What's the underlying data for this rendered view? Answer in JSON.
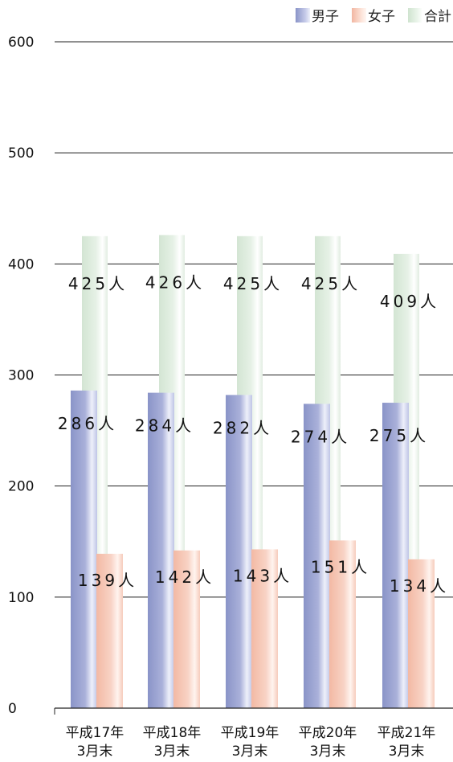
{
  "chart_data": {
    "type": "bar",
    "categories": [
      [
        "平成17年",
        "3月末"
      ],
      [
        "平成18年",
        "3月末"
      ],
      [
        "平成19年",
        "3月末"
      ],
      [
        "平成20年",
        "3月末"
      ],
      [
        "平成21年",
        "3月末"
      ]
    ],
    "series": [
      {
        "name": "男子",
        "values": [
          286,
          284,
          282,
          274,
          275
        ],
        "labels": [
          "286人",
          "284人",
          "282人",
          "274人",
          "275人"
        ]
      },
      {
        "name": "女子",
        "values": [
          139,
          142,
          143,
          151,
          134
        ],
        "labels": [
          "139人",
          "142人",
          "143人",
          "151人",
          "134人"
        ]
      },
      {
        "name": "合計",
        "values": [
          425,
          426,
          425,
          425,
          409
        ],
        "labels": [
          "425人",
          "426人",
          "425人",
          "425人",
          "409人"
        ]
      }
    ],
    "yticks": [
      "0",
      "100",
      "200",
      "300",
      "400",
      "500",
      "600"
    ],
    "ylim": [
      0,
      600
    ],
    "legend_position": "top-right",
    "grid": true,
    "colors": {
      "male": "#8a94c8",
      "female": "#f2b7a2",
      "total": "#cfe3cf"
    }
  }
}
